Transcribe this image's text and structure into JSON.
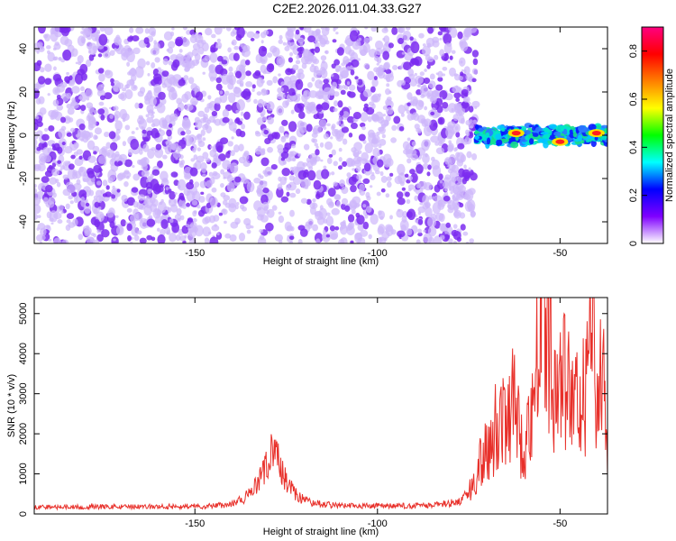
{
  "title": "C2E2.2026.011.04.33.G27",
  "colors": {
    "snr_line": "#e8302a",
    "dots": "#7b2cf0",
    "dots_light": "#cdb6fb",
    "spectrum_colormap": [
      "#ffffff",
      "#7f00ff",
      "#0000ff",
      "#00ffff",
      "#00ff00",
      "#ffff00",
      "#ff7f00",
      "#ff0000",
      "#ff0080"
    ]
  },
  "chart_data": [
    {
      "type": "heatmap",
      "title": "",
      "xlabel": "Height of straight line (km)",
      "ylabel": "Frequency (Hz)",
      "xlim": [
        -194,
        -37
      ],
      "ylim": [
        -50,
        50
      ],
      "xticks": [
        -150,
        -100,
        -50
      ],
      "yticks": [
        -40,
        -20,
        0,
        20,
        40
      ],
      "colorbar": {
        "label": "Normalized spectral amplitude",
        "range": [
          0,
          0.9
        ],
        "ticks": [
          0,
          0.2,
          0.4,
          0.6,
          0.8
        ]
      },
      "noise_region": {
        "x_range": [
          -194,
          -73
        ],
        "normalized_amplitude": 0.15
      },
      "gaps_x": [
        -134,
        -128,
        -95
      ],
      "signal_band": {
        "x_range": [
          -73,
          -37
        ],
        "center_frequency": 0,
        "half_width": 5,
        "peaks": [
          {
            "x": -62,
            "frequency": 1,
            "amplitude": 0.85
          },
          {
            "x": -50,
            "frequency": -3,
            "amplitude": 0.85
          },
          {
            "x": -40,
            "frequency": 1,
            "amplitude": 0.8
          }
        ]
      }
    },
    {
      "type": "line",
      "title": "",
      "xlabel": "Height of straight line (km)",
      "ylabel": "SNR (10 * v/v)",
      "xlim": [
        -194,
        -37
      ],
      "ylim": [
        0,
        5400
      ],
      "xticks": [
        -150,
        -100,
        -50
      ],
      "yticks": [
        0,
        1000,
        2000,
        3000,
        4000,
        5000
      ],
      "series": [
        {
          "x": [
            -194,
            -185,
            -175,
            -165,
            -155,
            -145,
            -140,
            -137,
            -134,
            -131,
            -129,
            -127,
            -125,
            -122,
            -119,
            -116,
            -112,
            -105,
            -95,
            -85,
            -78,
            -75,
            -73,
            -71,
            -69,
            -67,
            -65,
            -63,
            -62,
            -60,
            -58,
            -56,
            -55,
            -53,
            -51,
            -49,
            -47,
            -45,
            -43,
            -41,
            -40,
            -39,
            -38,
            -37
          ],
          "y": [
            180,
            170,
            180,
            175,
            190,
            200,
            250,
            350,
            600,
            1050,
            1550,
            1300,
            800,
            450,
            300,
            250,
            220,
            200,
            200,
            210,
            300,
            500,
            900,
            1600,
            1900,
            2300,
            2700,
            2800,
            2400,
            1700,
            2400,
            4500,
            5300,
            4400,
            2800,
            3400,
            2800,
            2600,
            3200,
            4200,
            3500,
            4800,
            3100,
            1800
          ]
        }
      ]
    }
  ]
}
